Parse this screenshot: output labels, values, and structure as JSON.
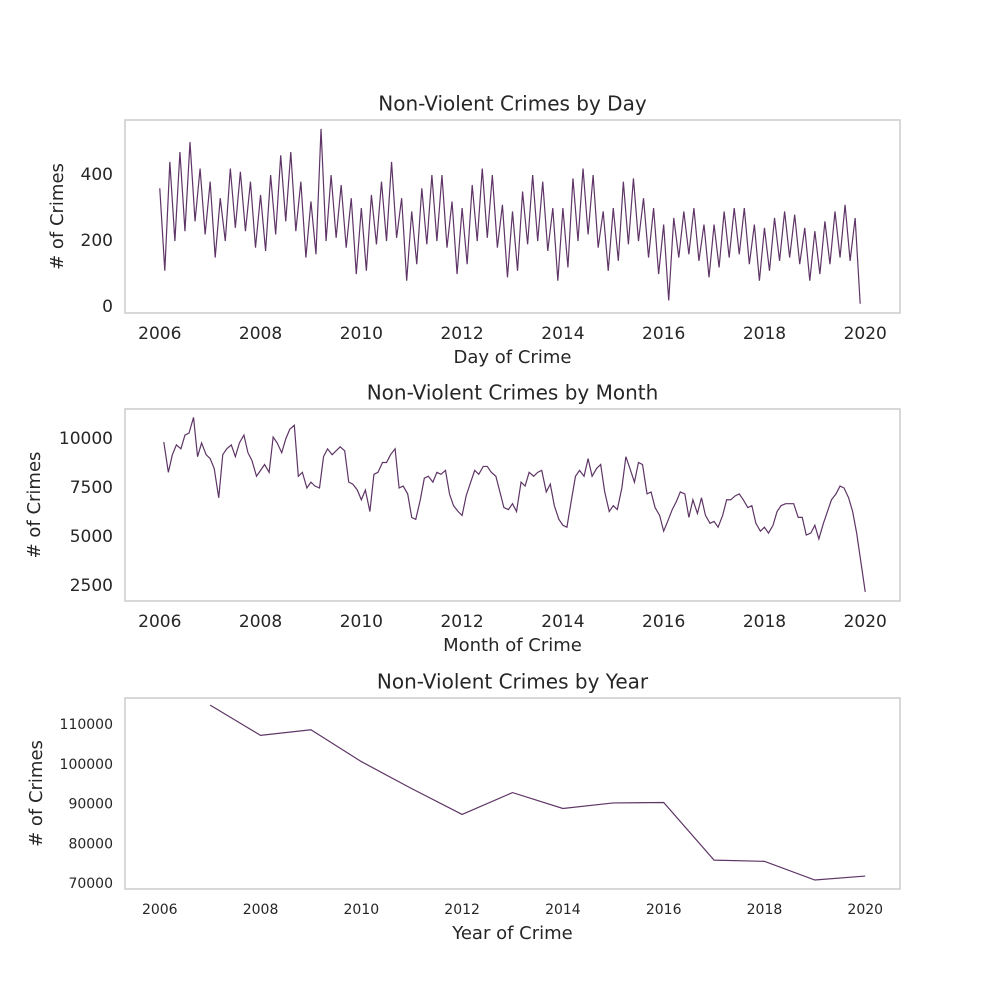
{
  "chart_data": [
    {
      "type": "line",
      "title": "Non-Violent Crimes by Day",
      "x_label": "Day of Crime",
      "y_label": "# of Crimes",
      "color": "#5e3566",
      "x": [
        2006.0,
        2006.1,
        2006.2,
        2006.3,
        2006.4,
        2006.5,
        2006.6,
        2006.7,
        2006.8,
        2006.9,
        2007.0,
        2007.1,
        2007.2,
        2007.3,
        2007.4,
        2007.5,
        2007.6,
        2007.7,
        2007.8,
        2007.9,
        2008.0,
        2008.1,
        2008.2,
        2008.3,
        2008.4,
        2008.5,
        2008.6,
        2008.7,
        2008.8,
        2008.9,
        2009.0,
        2009.1,
        2009.2,
        2009.3,
        2009.4,
        2009.5,
        2009.6,
        2009.7,
        2009.8,
        2009.9,
        2010.0,
        2010.1,
        2010.2,
        2010.3,
        2010.4,
        2010.5,
        2010.6,
        2010.7,
        2010.8,
        2010.9,
        2011.0,
        2011.1,
        2011.2,
        2011.3,
        2011.4,
        2011.5,
        2011.6,
        2011.7,
        2011.8,
        2011.9,
        2012.0,
        2012.1,
        2012.2,
        2012.3,
        2012.4,
        2012.5,
        2012.6,
        2012.7,
        2012.8,
        2012.9,
        2013.0,
        2013.1,
        2013.2,
        2013.3,
        2013.4,
        2013.5,
        2013.6,
        2013.7,
        2013.8,
        2013.9,
        2014.0,
        2014.1,
        2014.2,
        2014.3,
        2014.4,
        2014.5,
        2014.6,
        2014.7,
        2014.8,
        2014.9,
        2015.0,
        2015.1,
        2015.2,
        2015.3,
        2015.4,
        2015.5,
        2015.6,
        2015.7,
        2015.8,
        2015.9,
        2016.0,
        2016.1,
        2016.2,
        2016.3,
        2016.4,
        2016.5,
        2016.6,
        2016.7,
        2016.8,
        2016.9,
        2017.0,
        2017.1,
        2017.2,
        2017.3,
        2017.4,
        2017.5,
        2017.6,
        2017.7,
        2017.8,
        2017.9,
        2018.0,
        2018.1,
        2018.2,
        2018.3,
        2018.4,
        2018.5,
        2018.6,
        2018.7,
        2018.8,
        2018.9,
        2019.0,
        2019.1,
        2019.2,
        2019.3,
        2019.4,
        2019.5,
        2019.6,
        2019.7,
        2019.8,
        2019.9
      ],
      "values": [
        360,
        110,
        440,
        200,
        470,
        230,
        500,
        260,
        420,
        220,
        380,
        150,
        330,
        200,
        420,
        240,
        410,
        230,
        380,
        180,
        340,
        170,
        400,
        220,
        460,
        260,
        470,
        230,
        380,
        150,
        320,
        160,
        540,
        200,
        400,
        210,
        370,
        180,
        330,
        100,
        300,
        110,
        340,
        190,
        380,
        200,
        440,
        210,
        330,
        80,
        290,
        130,
        360,
        190,
        400,
        200,
        400,
        180,
        320,
        100,
        300,
        130,
        370,
        200,
        420,
        210,
        400,
        180,
        310,
        90,
        290,
        110,
        350,
        190,
        400,
        200,
        380,
        170,
        300,
        80,
        300,
        120,
        390,
        200,
        420,
        220,
        400,
        180,
        290,
        110,
        300,
        140,
        380,
        190,
        390,
        200,
        330,
        150,
        300,
        100,
        250,
        20,
        270,
        150,
        290,
        160,
        300,
        140,
        250,
        90,
        250,
        120,
        290,
        150,
        300,
        160,
        300,
        130,
        250,
        80,
        240,
        110,
        270,
        140,
        290,
        150,
        280,
        130,
        240,
        80,
        230,
        100,
        260,
        130,
        290,
        150,
        310,
        140,
        270,
        10
      ],
      "xlim": [
        2005.31,
        2020.69
      ],
      "ylim": [
        -18,
        567
      ],
      "xticks": [
        2006,
        2008,
        2010,
        2012,
        2014,
        2016,
        2018,
        2020
      ],
      "yticks": [
        0,
        200,
        400
      ]
    },
    {
      "type": "line",
      "title": "Non-Violent Crimes by Month",
      "x_label": "Month of Crime",
      "y_label": "# of Crimes",
      "color": "#5e3566",
      "x": [
        2006.08,
        2006.17,
        2006.25,
        2006.33,
        2006.42,
        2006.5,
        2006.58,
        2006.67,
        2006.75,
        2006.83,
        2006.92,
        2007.0,
        2007.08,
        2007.17,
        2007.25,
        2007.33,
        2007.42,
        2007.5,
        2007.58,
        2007.67,
        2007.75,
        2007.83,
        2007.92,
        2008.0,
        2008.08,
        2008.17,
        2008.25,
        2008.33,
        2008.42,
        2008.5,
        2008.58,
        2008.67,
        2008.75,
        2008.83,
        2008.92,
        2009.0,
        2009.08,
        2009.17,
        2009.25,
        2009.33,
        2009.42,
        2009.5,
        2009.58,
        2009.67,
        2009.75,
        2009.83,
        2009.92,
        2010.0,
        2010.08,
        2010.17,
        2010.25,
        2010.33,
        2010.42,
        2010.5,
        2010.58,
        2010.67,
        2010.75,
        2010.83,
        2010.92,
        2011.0,
        2011.08,
        2011.17,
        2011.25,
        2011.33,
        2011.42,
        2011.5,
        2011.58,
        2011.67,
        2011.75,
        2011.83,
        2011.92,
        2012.0,
        2012.08,
        2012.17,
        2012.25,
        2012.33,
        2012.42,
        2012.5,
        2012.58,
        2012.67,
        2012.75,
        2012.83,
        2012.92,
        2013.0,
        2013.08,
        2013.17,
        2013.25,
        2013.33,
        2013.42,
        2013.5,
        2013.58,
        2013.67,
        2013.75,
        2013.83,
        2013.92,
        2014.0,
        2014.08,
        2014.17,
        2014.25,
        2014.33,
        2014.42,
        2014.5,
        2014.58,
        2014.67,
        2014.75,
        2014.83,
        2014.92,
        2015.0,
        2015.08,
        2015.17,
        2015.25,
        2015.33,
        2015.42,
        2015.5,
        2015.58,
        2015.67,
        2015.75,
        2015.83,
        2015.92,
        2016.0,
        2016.08,
        2016.17,
        2016.25,
        2016.33,
        2016.42,
        2016.5,
        2016.58,
        2016.67,
        2016.75,
        2016.83,
        2016.92,
        2017.0,
        2017.08,
        2017.17,
        2017.25,
        2017.33,
        2017.42,
        2017.5,
        2017.58,
        2017.67,
        2017.75,
        2017.83,
        2017.92,
        2018.0,
        2018.08,
        2018.17,
        2018.25,
        2018.33,
        2018.42,
        2018.5,
        2018.58,
        2018.67,
        2018.75,
        2018.83,
        2018.92,
        2019.0,
        2019.08,
        2019.17,
        2019.25,
        2019.33,
        2019.42,
        2019.5,
        2019.58,
        2019.67,
        2019.75,
        2019.83,
        2020.0
      ],
      "values": [
        9850,
        8300,
        9200,
        9700,
        9500,
        10200,
        10300,
        11100,
        9100,
        9800,
        9200,
        9000,
        8500,
        7000,
        9200,
        9500,
        9700,
        9100,
        9800,
        10200,
        9300,
        8900,
        8100,
        8400,
        8700,
        8300,
        10100,
        9800,
        9300,
        10000,
        10500,
        10700,
        8100,
        8300,
        7500,
        7800,
        7600,
        7500,
        9100,
        9500,
        9200,
        9400,
        9600,
        9400,
        7800,
        7700,
        7400,
        6900,
        7400,
        6300,
        8200,
        8300,
        8800,
        8800,
        9200,
        9500,
        7500,
        7600,
        7200,
        6000,
        5900,
        6900,
        8000,
        8100,
        7800,
        8300,
        8200,
        8400,
        7200,
        6600,
        6300,
        6100,
        7100,
        7800,
        8400,
        8200,
        8600,
        8600,
        8300,
        8100,
        7300,
        6500,
        6400,
        6700,
        6300,
        7800,
        7600,
        8300,
        8100,
        8300,
        8400,
        7300,
        7700,
        6600,
        5900,
        5600,
        5500,
        6900,
        8100,
        8400,
        8100,
        9000,
        8100,
        8500,
        8700,
        7300,
        6300,
        6600,
        6400,
        7500,
        9100,
        8500,
        7800,
        8800,
        8700,
        7200,
        7300,
        6500,
        6100,
        5300,
        5800,
        6400,
        6800,
        7300,
        7200,
        6000,
        6900,
        6200,
        7000,
        6100,
        5700,
        5800,
        5500,
        6100,
        6900,
        6900,
        7100,
        7200,
        6900,
        6500,
        6600,
        5700,
        5300,
        5500,
        5200,
        5600,
        6300,
        6600,
        6700,
        6700,
        6700,
        6000,
        6000,
        5100,
        5200,
        5600,
        4900,
        5700,
        6300,
        6900,
        7200,
        7600,
        7500,
        7000,
        6300,
        5200,
        2200
      ],
      "xlim": [
        2005.31,
        2020.69
      ],
      "ylim": [
        1735,
        11531
      ],
      "xticks": [
        2006,
        2008,
        2010,
        2012,
        2014,
        2016,
        2018,
        2020
      ],
      "yticks": [
        2500,
        5000,
        7500,
        10000
      ]
    },
    {
      "type": "line",
      "title": "Non-Violent Crimes by Year",
      "x_label": "Year of Crime",
      "y_label": "# of Crimes",
      "color": "#5e3566",
      "x": [
        2007,
        2008,
        2009,
        2010,
        2011,
        2012,
        2013,
        2014,
        2015,
        2016,
        2017,
        2018,
        2019,
        2020
      ],
      "values": [
        115000,
        107400,
        108800,
        100800,
        94000,
        87500,
        93000,
        89000,
        90400,
        90500,
        76000,
        75700,
        71000,
        72000
      ],
      "xlim": [
        2005.31,
        2020.69
      ],
      "ylim": [
        68740,
        116800
      ],
      "xticks": [
        2006,
        2008,
        2010,
        2012,
        2014,
        2016,
        2018,
        2020
      ],
      "yticks": [
        70000,
        80000,
        90000,
        100000,
        110000
      ]
    }
  ]
}
